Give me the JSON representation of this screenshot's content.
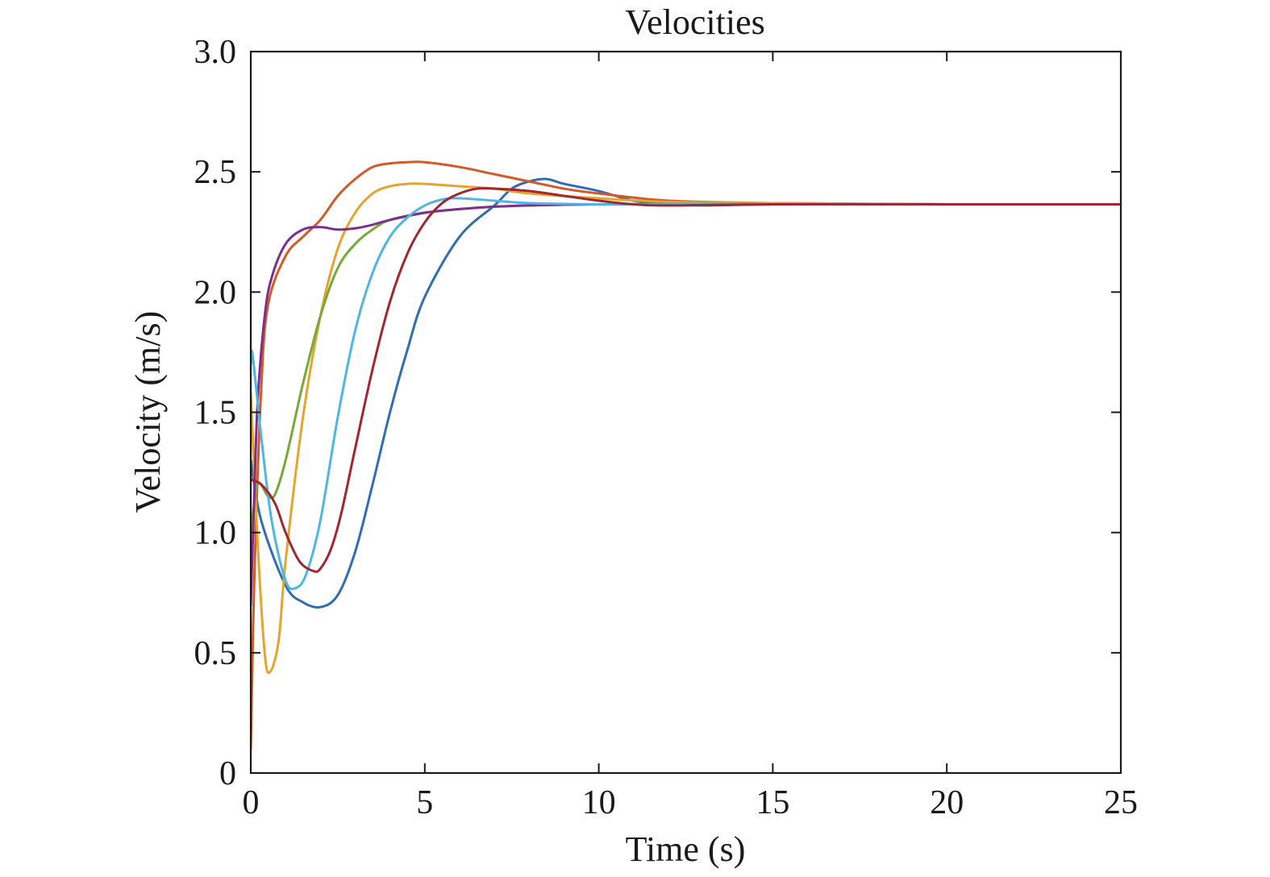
{
  "chart_data": {
    "type": "line",
    "title": "Velocities",
    "xlabel": "Time (s)",
    "ylabel": "Velocity (m/s)",
    "xlim": [
      0,
      25
    ],
    "ylim": [
      0,
      3.0
    ],
    "xticks": [
      0,
      5,
      10,
      15,
      20,
      25
    ],
    "xtick_labels": [
      "0",
      "5",
      "10",
      "15",
      "20",
      "25"
    ],
    "yticks": [
      0,
      0.5,
      1.0,
      1.5,
      2.0,
      2.5,
      3.0
    ],
    "ytick_labels": [
      "0",
      "0.5",
      "1.0",
      "1.5",
      "2.0",
      "2.5",
      "3.0"
    ],
    "grid": false,
    "legend": "none",
    "series": [
      {
        "color": "#2f6db5",
        "x": [
          0,
          0.3,
          1,
          1.5,
          2,
          2.5,
          3,
          3.5,
          4,
          4.5,
          5,
          6,
          7,
          7.5,
          8,
          8.5,
          9,
          10,
          11,
          12,
          13,
          15,
          20,
          25
        ],
        "y": [
          1.3,
          1.05,
          0.78,
          0.71,
          0.69,
          0.74,
          0.92,
          1.2,
          1.5,
          1.76,
          1.98,
          2.23,
          2.36,
          2.43,
          2.46,
          2.47,
          2.45,
          2.42,
          2.38,
          2.365,
          2.36,
          2.365,
          2.365,
          2.365
        ]
      },
      {
        "color": "#d25a27",
        "x": [
          0,
          0.1,
          0.3,
          0.5,
          1,
          1.5,
          2,
          2.5,
          3,
          3.5,
          4,
          4.5,
          5,
          6,
          7,
          8,
          9,
          10,
          12,
          15,
          20,
          25
        ],
        "y": [
          0.1,
          0.8,
          1.6,
          1.95,
          2.15,
          2.23,
          2.3,
          2.4,
          2.47,
          2.52,
          2.535,
          2.54,
          2.54,
          2.52,
          2.49,
          2.46,
          2.43,
          2.41,
          2.38,
          2.37,
          2.365,
          2.365
        ]
      },
      {
        "color": "#e4a52d",
        "x": [
          0,
          0.2,
          0.4,
          0.55,
          0.8,
          1,
          1.5,
          2,
          2.5,
          3,
          3.5,
          4,
          4.5,
          5,
          6,
          7,
          8,
          10,
          12,
          15,
          20,
          25
        ],
        "y": [
          1.58,
          0.95,
          0.5,
          0.42,
          0.55,
          0.88,
          1.48,
          1.9,
          2.18,
          2.33,
          2.41,
          2.44,
          2.45,
          2.45,
          2.44,
          2.43,
          2.41,
          2.39,
          2.375,
          2.37,
          2.365,
          2.365
        ]
      },
      {
        "color": "#76a83a",
        "x": [
          0,
          0.2,
          0.5,
          0.7,
          1,
          1.5,
          2,
          2.5,
          3,
          3.5,
          4,
          5,
          6,
          7,
          8,
          10,
          15,
          20,
          25
        ],
        "y": [
          1.0,
          1.2,
          1.15,
          1.16,
          1.3,
          1.62,
          1.9,
          2.1,
          2.2,
          2.26,
          2.3,
          2.33,
          2.345,
          2.355,
          2.36,
          2.365,
          2.365,
          2.365,
          2.365
        ]
      },
      {
        "color": "#7e2f8e",
        "x": [
          0,
          0.1,
          0.2,
          0.4,
          0.6,
          1,
          1.5,
          2,
          2.5,
          3,
          3.5,
          4,
          5,
          6,
          7,
          8,
          10,
          15,
          20,
          25
        ],
        "y": [
          0.7,
          1.15,
          1.55,
          1.9,
          2.06,
          2.2,
          2.26,
          2.27,
          2.26,
          2.265,
          2.28,
          2.3,
          2.33,
          2.345,
          2.355,
          2.36,
          2.365,
          2.365,
          2.365,
          2.365
        ]
      },
      {
        "color": "#4eb6e2",
        "x": [
          0,
          0.05,
          0.3,
          0.6,
          1,
          1.3,
          1.6,
          2,
          2.5,
          3,
          3.5,
          4,
          4.5,
          5,
          5.5,
          6,
          7,
          8,
          10,
          12,
          15,
          20,
          25
        ],
        "y": [
          1.7,
          1.74,
          1.4,
          1.05,
          0.8,
          0.77,
          0.83,
          1.05,
          1.48,
          1.84,
          2.08,
          2.23,
          2.31,
          2.36,
          2.385,
          2.39,
          2.38,
          2.37,
          2.365,
          2.365,
          2.365,
          2.365,
          2.365
        ]
      },
      {
        "color": "#a2252f",
        "x": [
          0,
          0.3,
          0.7,
          1,
          1.4,
          1.8,
          2,
          2.3,
          2.6,
          3,
          3.5,
          4,
          4.5,
          5,
          5.5,
          6,
          6.5,
          7,
          8,
          9,
          10,
          11,
          12,
          15,
          20,
          25
        ],
        "y": [
          1.22,
          1.2,
          1.12,
          1.0,
          0.88,
          0.84,
          0.85,
          0.93,
          1.08,
          1.35,
          1.68,
          1.96,
          2.16,
          2.29,
          2.37,
          2.41,
          2.43,
          2.43,
          2.42,
          2.4,
          2.38,
          2.365,
          2.36,
          2.365,
          2.365,
          2.365
        ]
      }
    ]
  }
}
